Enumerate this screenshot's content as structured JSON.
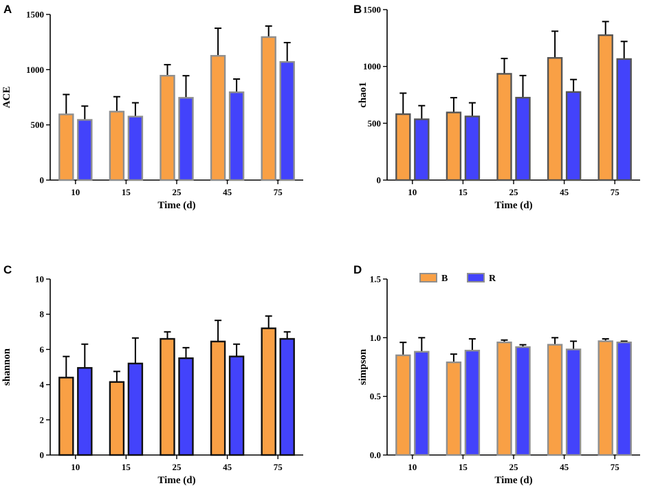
{
  "colors": {
    "B": "#F9A045",
    "R": "#4343FB",
    "errorbar": "#000000",
    "axis": "#000000"
  },
  "legend": {
    "placement": "top-left",
    "panel": "D",
    "entries": [
      {
        "key": "B",
        "label": "B"
      },
      {
        "key": "R",
        "label": "R"
      }
    ]
  },
  "chart_data": [
    {
      "panel": "A",
      "type": "bar",
      "title": "",
      "xlabel": "Time (d)",
      "ylabel": "ACE",
      "categories": [
        "10",
        "15",
        "25",
        "45",
        "75"
      ],
      "ylim": [
        0,
        1500
      ],
      "yticks": [
        0,
        500,
        1000,
        1500
      ],
      "bar_outline": "#8f8f8f",
      "series": [
        {
          "name": "B",
          "values": [
            595,
            620,
            945,
            1125,
            1295
          ],
          "errors": [
            180,
            135,
            100,
            250,
            100
          ]
        },
        {
          "name": "R",
          "values": [
            545,
            575,
            745,
            795,
            1070
          ],
          "errors": [
            125,
            125,
            200,
            120,
            175
          ]
        }
      ]
    },
    {
      "panel": "B",
      "type": "bar",
      "title": "",
      "xlabel": "Time (d)",
      "ylabel": "chao1",
      "categories": [
        "10",
        "15",
        "25",
        "45",
        "75"
      ],
      "ylim": [
        0,
        1500
      ],
      "yticks": [
        0,
        500,
        1000,
        1500
      ],
      "bar_outline": "#555555",
      "series": [
        {
          "name": "B",
          "values": [
            580,
            595,
            935,
            1075,
            1275
          ],
          "errors": [
            185,
            130,
            135,
            235,
            120
          ]
        },
        {
          "name": "R",
          "values": [
            535,
            560,
            725,
            775,
            1065
          ],
          "errors": [
            120,
            120,
            195,
            110,
            155
          ]
        }
      ]
    },
    {
      "panel": "C",
      "type": "bar",
      "title": "",
      "xlabel": "Time (d)",
      "ylabel": "shannon",
      "categories": [
        "10",
        "15",
        "25",
        "45",
        "75"
      ],
      "ylim": [
        0,
        10
      ],
      "yticks": [
        0,
        2,
        4,
        6,
        8,
        10
      ],
      "bar_outline": "#111111",
      "series": [
        {
          "name": "B",
          "values": [
            4.4,
            4.15,
            6.6,
            6.45,
            7.2
          ],
          "errors": [
            1.2,
            0.6,
            0.4,
            1.2,
            0.7
          ]
        },
        {
          "name": "R",
          "values": [
            4.95,
            5.2,
            5.5,
            5.6,
            6.6
          ],
          "errors": [
            1.35,
            1.45,
            0.6,
            0.7,
            0.4
          ]
        }
      ]
    },
    {
      "panel": "D",
      "type": "bar",
      "title": "",
      "xlabel": "Time (d)",
      "ylabel": "simpson",
      "categories": [
        "10",
        "15",
        "25",
        "45",
        "75"
      ],
      "ylim": [
        0,
        1.5
      ],
      "yticks": [
        "0.0",
        "0.5",
        "1.0",
        "1.5"
      ],
      "bar_outline": "#8f8f8f",
      "series": [
        {
          "name": "B",
          "values": [
            0.85,
            0.79,
            0.96,
            0.94,
            0.97
          ],
          "errors": [
            0.11,
            0.07,
            0.02,
            0.06,
            0.02
          ]
        },
        {
          "name": "R",
          "values": [
            0.88,
            0.89,
            0.92,
            0.9,
            0.96
          ],
          "errors": [
            0.12,
            0.1,
            0.02,
            0.07,
            0.01
          ]
        }
      ]
    }
  ]
}
